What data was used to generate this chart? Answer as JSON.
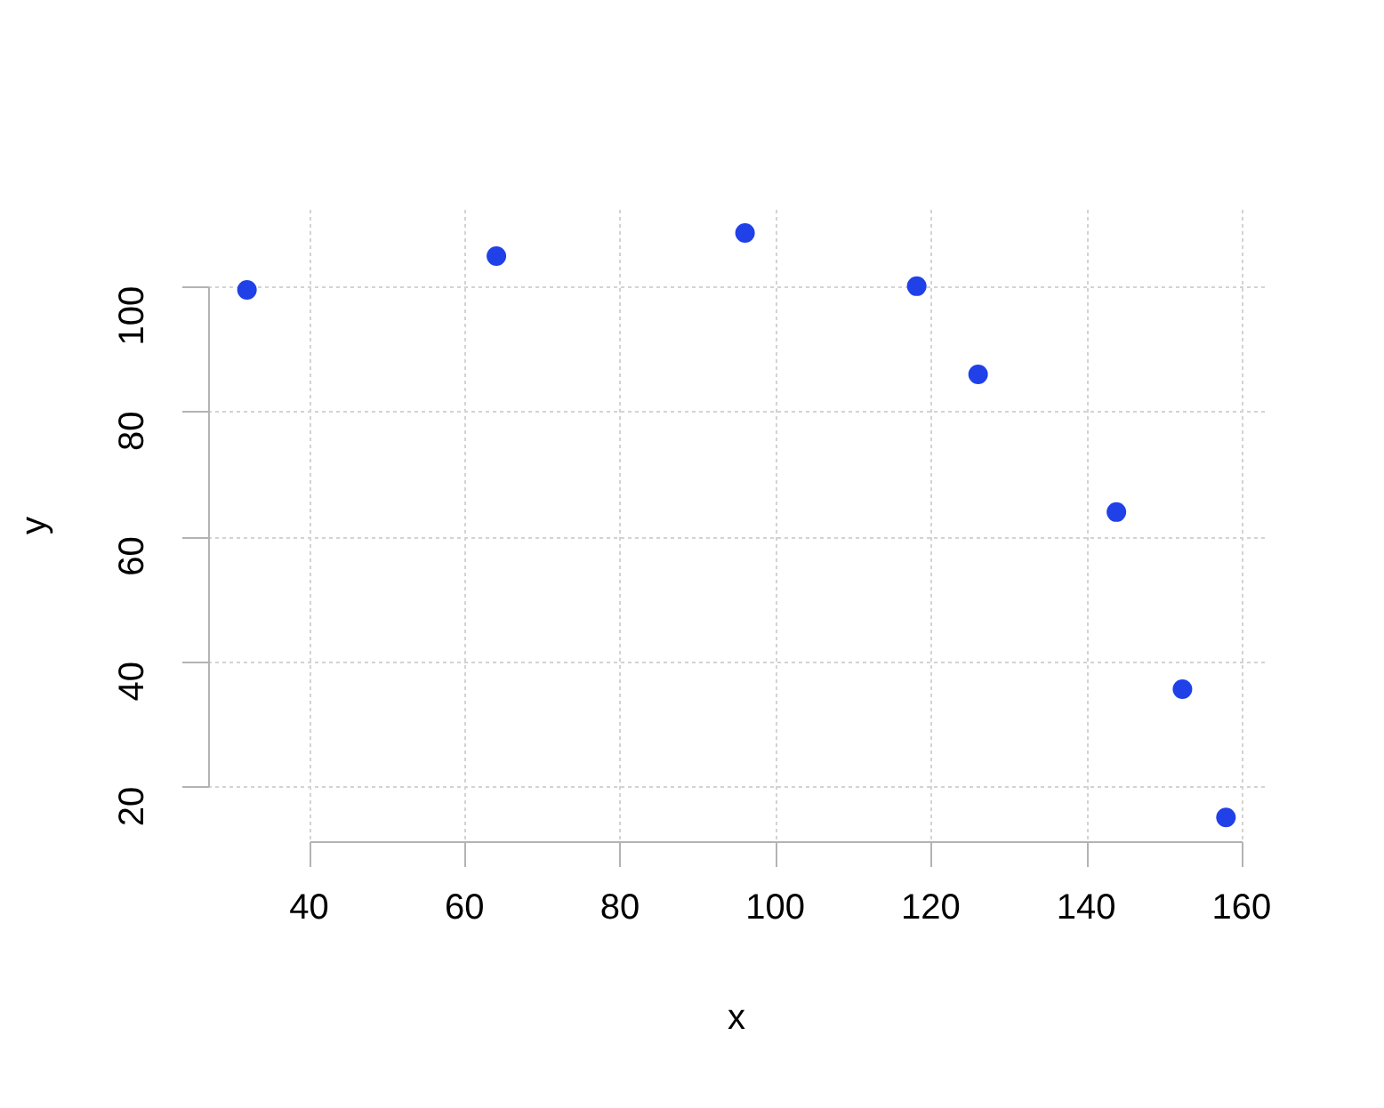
{
  "chart_data": {
    "type": "scatter",
    "xlabel": "x",
    "ylabel": "y",
    "x": [
      32.0,
      64.1,
      96.1,
      118.2,
      126.1,
      143.9,
      152.4,
      158.0
    ],
    "values": [
      99.4,
      104.8,
      108.5,
      100.0,
      85.9,
      63.9,
      35.6,
      15.1
    ],
    "color": "#2040e8",
    "marker": "circle",
    "xlim": [
      27,
      163
    ],
    "ylim": [
      11.3,
      112.2
    ],
    "xticks": [
      40,
      60,
      80,
      100,
      120,
      140,
      160
    ],
    "yticks": [
      20,
      40,
      60,
      80,
      100
    ],
    "grid": true
  }
}
